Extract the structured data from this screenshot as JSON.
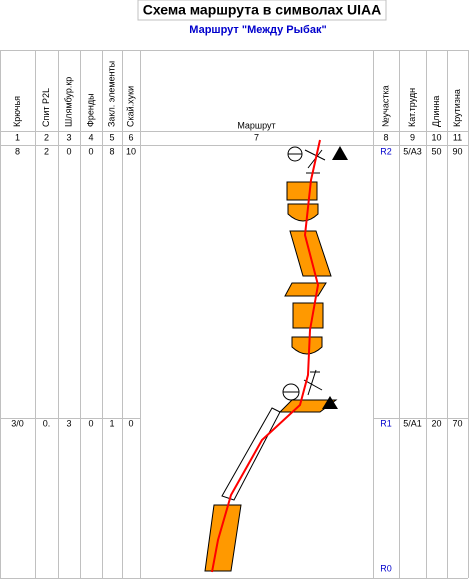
{
  "header": {
    "title": "Схема маршрута в символах UIAA",
    "subtitle": "Маршрут \"Между Рыбак\""
  },
  "table": {
    "left_columns": [
      "Крючья",
      "Спит P2L",
      "Шлямбур.кр",
      "Френды",
      "Закл. элементы",
      "Скай.хуки"
    ],
    "route_column": "Маршрут",
    "right_columns": [
      "№участка",
      "Кат.трудн",
      "Длинна",
      "Крутизна"
    ],
    "column_numbers": [
      1,
      2,
      3,
      4,
      5,
      6,
      7,
      8,
      9,
      10,
      11
    ],
    "rows": [
      {
        "left": [
          "8",
          "2",
          "0",
          "0",
          "8",
          "10"
        ],
        "right": [
          "R2",
          "5/A3",
          "50",
          "90"
        ]
      },
      {
        "left": [
          "3/0",
          "0.",
          "3",
          "0",
          "1",
          "0"
        ],
        "right": [
          "R1",
          "5/A1",
          "20",
          "70"
        ]
      }
    ],
    "footer": "R0"
  }
}
